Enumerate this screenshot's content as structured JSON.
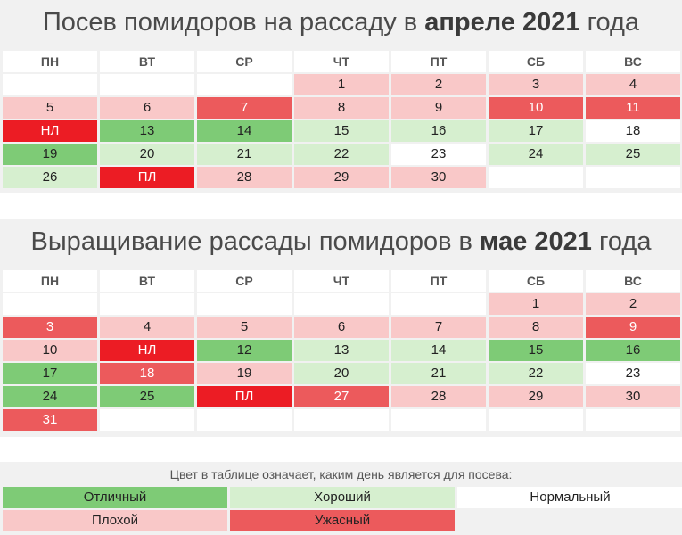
{
  "april": {
    "title_prefix": "Посев помидоров на рассаду в ",
    "title_bold": "апреле 2021",
    "title_suffix": " года",
    "weekdays": [
      "ПН",
      "ВТ",
      "СР",
      "ЧТ",
      "ПТ",
      "СБ",
      "ВС"
    ],
    "offset": 3,
    "days": [
      {
        "t": "1",
        "c": "bad"
      },
      {
        "t": "2",
        "c": "bad"
      },
      {
        "t": "3",
        "c": "bad"
      },
      {
        "t": "4",
        "c": "bad"
      },
      {
        "t": "5",
        "c": "bad"
      },
      {
        "t": "6",
        "c": "bad"
      },
      {
        "t": "7",
        "c": "awf"
      },
      {
        "t": "8",
        "c": "bad"
      },
      {
        "t": "9",
        "c": "bad"
      },
      {
        "t": "10",
        "c": "awf"
      },
      {
        "t": "11",
        "c": "awf"
      },
      {
        "t": "НЛ",
        "c": "worst"
      },
      {
        "t": "13",
        "c": "exc"
      },
      {
        "t": "14",
        "c": "exc"
      },
      {
        "t": "15",
        "c": "good"
      },
      {
        "t": "16",
        "c": "good"
      },
      {
        "t": "17",
        "c": "good"
      },
      {
        "t": "18",
        "c": "norm"
      },
      {
        "t": "19",
        "c": "exc"
      },
      {
        "t": "20",
        "c": "good"
      },
      {
        "t": "21",
        "c": "good"
      },
      {
        "t": "22",
        "c": "good"
      },
      {
        "t": "23",
        "c": "norm"
      },
      {
        "t": "24",
        "c": "good"
      },
      {
        "t": "25",
        "c": "good"
      },
      {
        "t": "26",
        "c": "good"
      },
      {
        "t": "ПЛ",
        "c": "worst"
      },
      {
        "t": "28",
        "c": "bad"
      },
      {
        "t": "29",
        "c": "bad"
      },
      {
        "t": "30",
        "c": "bad"
      }
    ]
  },
  "may": {
    "title_prefix": "Выращивание рассады помидоров в ",
    "title_bold": "мае 2021",
    "title_suffix": " года",
    "weekdays": [
      "ПН",
      "ВТ",
      "СР",
      "ЧТ",
      "ПТ",
      "СБ",
      "ВС"
    ],
    "offset": 5,
    "days": [
      {
        "t": "1",
        "c": "bad"
      },
      {
        "t": "2",
        "c": "bad"
      },
      {
        "t": "3",
        "c": "awf"
      },
      {
        "t": "4",
        "c": "bad"
      },
      {
        "t": "5",
        "c": "bad"
      },
      {
        "t": "6",
        "c": "bad"
      },
      {
        "t": "7",
        "c": "bad"
      },
      {
        "t": "8",
        "c": "bad"
      },
      {
        "t": "9",
        "c": "awf"
      },
      {
        "t": "10",
        "c": "bad"
      },
      {
        "t": "НЛ",
        "c": "worst"
      },
      {
        "t": "12",
        "c": "exc"
      },
      {
        "t": "13",
        "c": "good"
      },
      {
        "t": "14",
        "c": "good"
      },
      {
        "t": "15",
        "c": "exc"
      },
      {
        "t": "16",
        "c": "exc"
      },
      {
        "t": "17",
        "c": "exc"
      },
      {
        "t": "18",
        "c": "awf"
      },
      {
        "t": "19",
        "c": "bad"
      },
      {
        "t": "20",
        "c": "good"
      },
      {
        "t": "21",
        "c": "good"
      },
      {
        "t": "22",
        "c": "good"
      },
      {
        "t": "23",
        "c": "norm"
      },
      {
        "t": "24",
        "c": "exc"
      },
      {
        "t": "25",
        "c": "exc"
      },
      {
        "t": "ПЛ",
        "c": "worst"
      },
      {
        "t": "27",
        "c": "awf"
      },
      {
        "t": "28",
        "c": "bad"
      },
      {
        "t": "29",
        "c": "bad"
      },
      {
        "t": "30",
        "c": "bad"
      },
      {
        "t": "31",
        "c": "awf"
      }
    ]
  },
  "legend": {
    "caption": "Цвет в таблице означает, каким день является для посева:",
    "items": [
      {
        "label": "Отличный",
        "c": "exc"
      },
      {
        "label": "Хороший",
        "c": "good"
      },
      {
        "label": "Нормальный",
        "c": "norm"
      },
      {
        "label": "Плохой",
        "c": "bad"
      },
      {
        "label": "Ужасный",
        "c": "awf"
      }
    ]
  },
  "colors": {
    "excellent": "#7ecb76",
    "good": "#d6efcf",
    "normal": "#ffffff",
    "bad": "#f9c8c8",
    "awful": "#ec5a5c",
    "moon_phase": "#ec1c24"
  }
}
